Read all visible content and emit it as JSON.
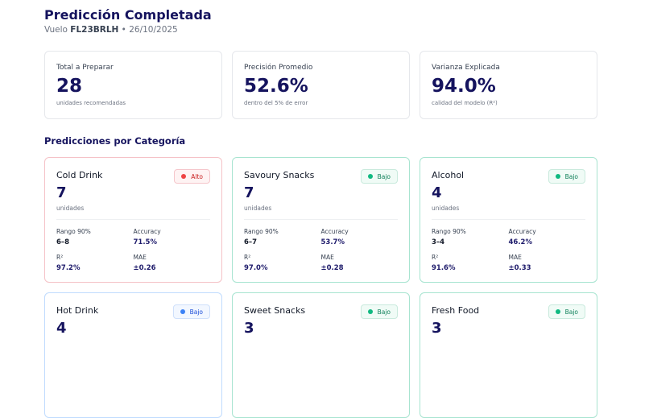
{
  "header": {
    "title": "Predicción Completada",
    "flight_prefix": "Vuelo",
    "flight": "FL23BRLH",
    "separator": "•",
    "date": "26/10/2025"
  },
  "stats": [
    {
      "label": "Total a Preparar",
      "value": "28",
      "hint": "unidades recomendadas"
    },
    {
      "label": "Precisión Promedio",
      "value": "52.6%",
      "hint": "dentro del 5% de error"
    },
    {
      "label": "Varianza Explicada",
      "value": "94.0%",
      "hint": "calidad del modelo (R²)"
    }
  ],
  "section_title": "Predicciones por Categoría",
  "metric_labels": {
    "range": "Rango 90%",
    "accuracy": "Accuracy",
    "r2": "R²",
    "mae": "MAE"
  },
  "colors": {
    "alto": "#ef4444",
    "bajo_green": "#10b981",
    "bajo_blue": "#3b82f6",
    "title": "#15135e"
  },
  "categories": [
    {
      "name": "Cold Drink",
      "units": "7",
      "unit_label": "unidades",
      "badge": "Alto",
      "level": "alto",
      "range": "6–8",
      "accuracy": "71.5%",
      "r2": "97.2%",
      "mae": "±0.26"
    },
    {
      "name": "Savoury Snacks",
      "units": "7",
      "unit_label": "unidades",
      "badge": "Bajo",
      "level": "green",
      "range": "6–7",
      "accuracy": "53.7%",
      "r2": "97.0%",
      "mae": "±0.28"
    },
    {
      "name": "Alcohol",
      "units": "4",
      "unit_label": "unidades",
      "badge": "Bajo",
      "level": "green",
      "range": "3–4",
      "accuracy": "46.2%",
      "r2": "91.6%",
      "mae": "±0.33"
    },
    {
      "name": "Hot Drink",
      "units": "4",
      "badge": "Bajo",
      "level": "blue"
    },
    {
      "name": "Sweet Snacks",
      "units": "3",
      "badge": "Bajo",
      "level": "green"
    },
    {
      "name": "Fresh Food",
      "units": "3",
      "badge": "Bajo",
      "level": "green"
    }
  ]
}
